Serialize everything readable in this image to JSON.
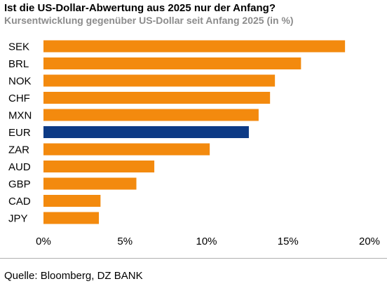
{
  "chart_data": {
    "type": "bar",
    "orientation": "horizontal",
    "title": "Ist die US-Dollar-Abwertung aus 2025 nur der Anfang?",
    "subtitle": "Kursentwicklung gegenüber US-Dollar seit Anfang 2025 (in %)",
    "categories": [
      "SEK",
      "BRL",
      "NOK",
      "CHF",
      "MXN",
      "EUR",
      "ZAR",
      "AUD",
      "GBP",
      "CAD",
      "JPY"
    ],
    "values": [
      18.5,
      15.8,
      14.2,
      13.9,
      13.2,
      12.6,
      10.2,
      6.8,
      5.7,
      3.5,
      3.4
    ],
    "highlight_category": "EUR",
    "xlim": [
      0,
      20
    ],
    "xticks": [
      0,
      5,
      10,
      15,
      20
    ],
    "xtick_labels": [
      "0%",
      "5%",
      "10%",
      "15%",
      "20%"
    ],
    "grid": false,
    "xlabel": "",
    "ylabel": ""
  },
  "colors": {
    "bar": "#f38a0e",
    "highlight": "#0d3a85"
  },
  "source": "Quelle: Bloomberg, DZ BANK"
}
